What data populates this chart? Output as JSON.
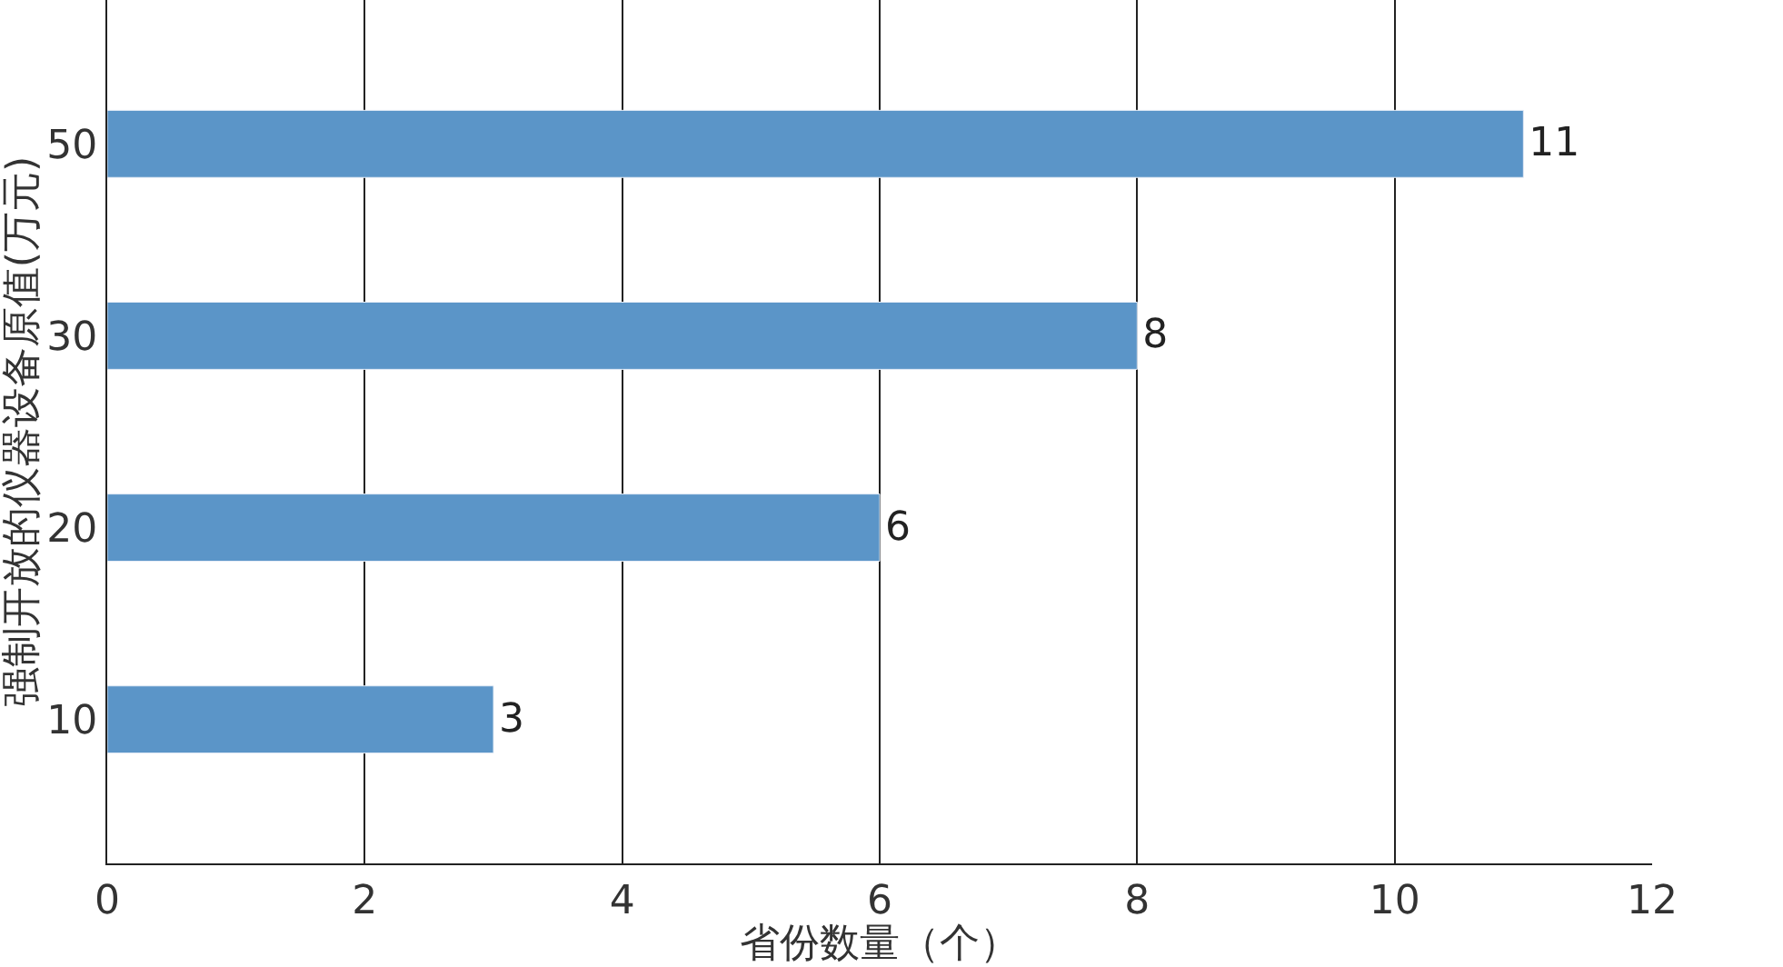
{
  "chart_data": {
    "type": "bar",
    "orientation": "horizontal",
    "xlabel": "省份数量（个）",
    "ylabel": "强制开放的仪器设备原值(万元)",
    "categories": [
      "50",
      "30",
      "20",
      "10"
    ],
    "values": [
      11,
      8,
      6,
      3
    ],
    "color": "#5b95c8",
    "xlim": [
      0,
      12
    ],
    "xticks": [
      0,
      2,
      4,
      6,
      8,
      10,
      12
    ],
    "grid": "x",
    "data_labels": true
  }
}
